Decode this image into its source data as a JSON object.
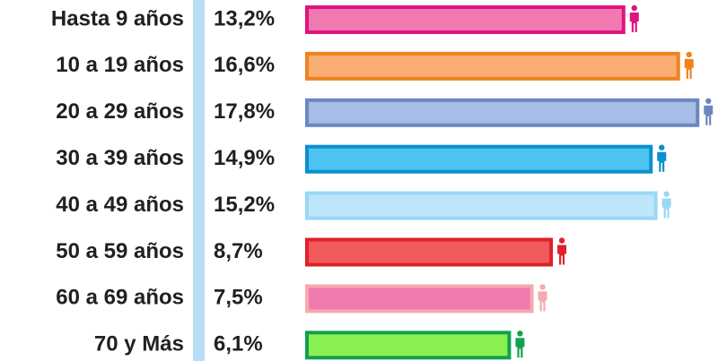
{
  "chart_data": {
    "type": "bar",
    "orientation": "horizontal",
    "categories": [
      "Hasta 9 años",
      "10 a 19 años",
      "20 a 29 años",
      "30 a 39 años",
      "40 a 49 años",
      "50 a 59 años",
      "60 a 69 años",
      "70 y Más"
    ],
    "values": [
      13.2,
      16.6,
      17.8,
      14.9,
      15.2,
      8.7,
      7.5,
      6.1
    ],
    "value_labels": [
      "13,2%",
      "16,6%",
      "17,8%",
      "14,9%",
      "15,2%",
      "8,7%",
      "7,5%",
      "6,1%"
    ],
    "colors": [
      "#f07ab0",
      "#f9ad73",
      "#a6bde6",
      "#4fc3f0",
      "#bde6fb",
      "#f05a5a",
      "#f07ab0",
      "#88f050"
    ],
    "edgecolors": [
      "#e0147f",
      "#f0821e",
      "#6a86c2",
      "#0a8fd0",
      "#9ad8f5",
      "#e0202a",
      "#f5aab0",
      "#10a050"
    ],
    "xlim": [
      -6.7,
      18.5
    ]
  }
}
